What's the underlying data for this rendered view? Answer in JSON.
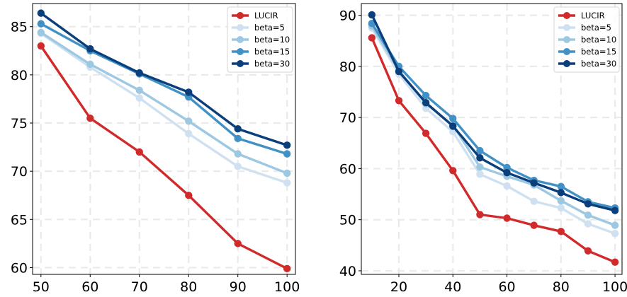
{
  "chart_data": [
    {
      "type": "line",
      "title": "",
      "xlabel": "",
      "ylabel": "",
      "x": [
        50,
        60,
        70,
        80,
        90,
        100
      ],
      "xlim": [
        48.3,
        101.7
      ],
      "ylim": [
        59.3,
        87.4
      ],
      "xticks": [
        50,
        60,
        70,
        80,
        90,
        100
      ],
      "yticks": [
        60,
        65,
        70,
        75,
        80,
        85
      ],
      "grid": true,
      "legend_position": "top-right",
      "series": [
        {
          "name": "LUCIR",
          "color": "#d12a2b",
          "values": [
            83.0,
            75.5,
            72.0,
            67.5,
            62.5,
            59.9
          ]
        },
        {
          "name": "beta=5",
          "color": "#cfe1f1",
          "values": [
            84.3,
            80.8,
            77.6,
            73.9,
            70.5,
            68.8
          ]
        },
        {
          "name": "beta=10",
          "color": "#9cc8e1",
          "values": [
            84.4,
            81.1,
            78.4,
            75.2,
            71.8,
            69.8
          ]
        },
        {
          "name": "beta=15",
          "color": "#4191c6",
          "values": [
            85.3,
            82.5,
            80.1,
            77.7,
            73.4,
            71.8
          ]
        },
        {
          "name": "beta=30",
          "color": "#0a3f7c",
          "values": [
            86.4,
            82.7,
            80.2,
            78.2,
            74.4,
            72.7
          ]
        }
      ]
    },
    {
      "type": "line",
      "title": "",
      "xlabel": "",
      "ylabel": "",
      "x": [
        10,
        20,
        30,
        40,
        50,
        60,
        70,
        80,
        90,
        100
      ],
      "xlim": [
        6.1,
        102.6
      ],
      "ylim": [
        39.3,
        92.3
      ],
      "xticks": [
        20,
        40,
        60,
        80,
        100
      ],
      "yticks": [
        40,
        50,
        60,
        70,
        80,
        90
      ],
      "grid": true,
      "legend_position": "top-right",
      "series": [
        {
          "name": "LUCIR",
          "color": "#d12a2b",
          "values": [
            85.6,
            73.3,
            66.9,
            59.6,
            51.0,
            50.3,
            48.9,
            47.7,
            43.9,
            41.7
          ]
        },
        {
          "name": "beta=5",
          "color": "#cfe1f1",
          "values": [
            87.5,
            78.5,
            71.8,
            67.2,
            58.9,
            56.6,
            53.6,
            52.3,
            49.2,
            47.3
          ]
        },
        {
          "name": "beta=10",
          "color": "#9cc8e1",
          "values": [
            87.9,
            79.2,
            72.7,
            68.5,
            60.3,
            58.5,
            56.8,
            53.7,
            50.9,
            48.9
          ]
        },
        {
          "name": "beta=15",
          "color": "#4191c6",
          "values": [
            88.4,
            80.0,
            74.3,
            69.8,
            63.5,
            60.2,
            57.7,
            56.5,
            53.5,
            52.3
          ]
        },
        {
          "name": "beta=30",
          "color": "#0a3f7c",
          "values": [
            90.1,
            79.0,
            72.9,
            68.3,
            62.1,
            59.2,
            57.2,
            55.3,
            53.1,
            51.8
          ]
        }
      ]
    }
  ]
}
